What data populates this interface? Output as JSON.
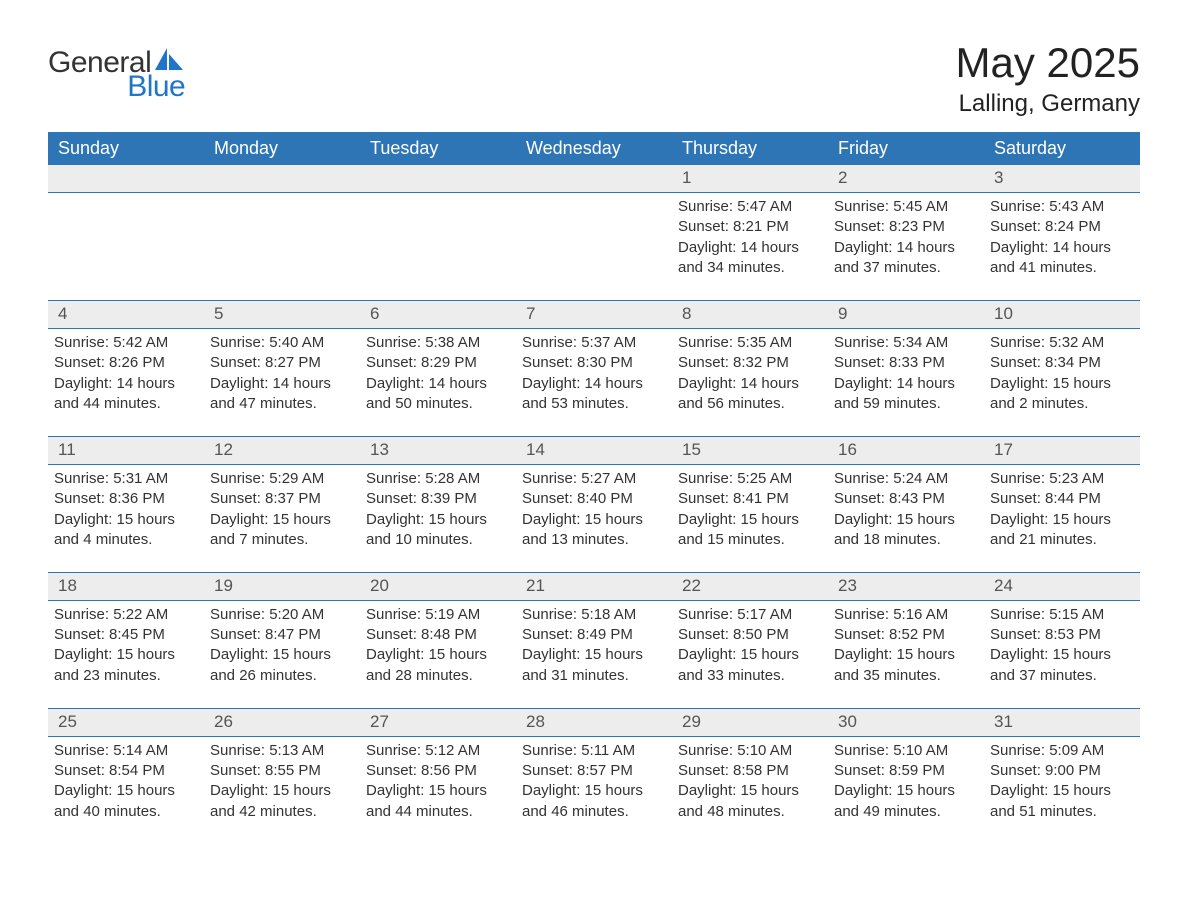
{
  "brand": {
    "text1": "General",
    "text2": "Blue",
    "accent": "#1f75c8"
  },
  "title": "May 2025",
  "location": "Lalling, Germany",
  "colors": {
    "header_bg": "#2e75b6",
    "header_text": "#ffffff",
    "daynum_bg": "#ededed",
    "row_border": "#2e75b6",
    "body_text": "#333333",
    "background": "#ffffff"
  },
  "columns": [
    "Sunday",
    "Monday",
    "Tuesday",
    "Wednesday",
    "Thursday",
    "Friday",
    "Saturday"
  ],
  "weeks": [
    {
      "nums": [
        "",
        "",
        "",
        "",
        "1",
        "2",
        "3"
      ],
      "cells": [
        null,
        null,
        null,
        null,
        {
          "sunrise": "Sunrise: 5:47 AM",
          "sunset": "Sunset: 8:21 PM",
          "day1": "Daylight: 14 hours",
          "day2": "and 34 minutes."
        },
        {
          "sunrise": "Sunrise: 5:45 AM",
          "sunset": "Sunset: 8:23 PM",
          "day1": "Daylight: 14 hours",
          "day2": "and 37 minutes."
        },
        {
          "sunrise": "Sunrise: 5:43 AM",
          "sunset": "Sunset: 8:24 PM",
          "day1": "Daylight: 14 hours",
          "day2": "and 41 minutes."
        }
      ]
    },
    {
      "nums": [
        "4",
        "5",
        "6",
        "7",
        "8",
        "9",
        "10"
      ],
      "cells": [
        {
          "sunrise": "Sunrise: 5:42 AM",
          "sunset": "Sunset: 8:26 PM",
          "day1": "Daylight: 14 hours",
          "day2": "and 44 minutes."
        },
        {
          "sunrise": "Sunrise: 5:40 AM",
          "sunset": "Sunset: 8:27 PM",
          "day1": "Daylight: 14 hours",
          "day2": "and 47 minutes."
        },
        {
          "sunrise": "Sunrise: 5:38 AM",
          "sunset": "Sunset: 8:29 PM",
          "day1": "Daylight: 14 hours",
          "day2": "and 50 minutes."
        },
        {
          "sunrise": "Sunrise: 5:37 AM",
          "sunset": "Sunset: 8:30 PM",
          "day1": "Daylight: 14 hours",
          "day2": "and 53 minutes."
        },
        {
          "sunrise": "Sunrise: 5:35 AM",
          "sunset": "Sunset: 8:32 PM",
          "day1": "Daylight: 14 hours",
          "day2": "and 56 minutes."
        },
        {
          "sunrise": "Sunrise: 5:34 AM",
          "sunset": "Sunset: 8:33 PM",
          "day1": "Daylight: 14 hours",
          "day2": "and 59 minutes."
        },
        {
          "sunrise": "Sunrise: 5:32 AM",
          "sunset": "Sunset: 8:34 PM",
          "day1": "Daylight: 15 hours",
          "day2": "and 2 minutes."
        }
      ]
    },
    {
      "nums": [
        "11",
        "12",
        "13",
        "14",
        "15",
        "16",
        "17"
      ],
      "cells": [
        {
          "sunrise": "Sunrise: 5:31 AM",
          "sunset": "Sunset: 8:36 PM",
          "day1": "Daylight: 15 hours",
          "day2": "and 4 minutes."
        },
        {
          "sunrise": "Sunrise: 5:29 AM",
          "sunset": "Sunset: 8:37 PM",
          "day1": "Daylight: 15 hours",
          "day2": "and 7 minutes."
        },
        {
          "sunrise": "Sunrise: 5:28 AM",
          "sunset": "Sunset: 8:39 PM",
          "day1": "Daylight: 15 hours",
          "day2": "and 10 minutes."
        },
        {
          "sunrise": "Sunrise: 5:27 AM",
          "sunset": "Sunset: 8:40 PM",
          "day1": "Daylight: 15 hours",
          "day2": "and 13 minutes."
        },
        {
          "sunrise": "Sunrise: 5:25 AM",
          "sunset": "Sunset: 8:41 PM",
          "day1": "Daylight: 15 hours",
          "day2": "and 15 minutes."
        },
        {
          "sunrise": "Sunrise: 5:24 AM",
          "sunset": "Sunset: 8:43 PM",
          "day1": "Daylight: 15 hours",
          "day2": "and 18 minutes."
        },
        {
          "sunrise": "Sunrise: 5:23 AM",
          "sunset": "Sunset: 8:44 PM",
          "day1": "Daylight: 15 hours",
          "day2": "and 21 minutes."
        }
      ]
    },
    {
      "nums": [
        "18",
        "19",
        "20",
        "21",
        "22",
        "23",
        "24"
      ],
      "cells": [
        {
          "sunrise": "Sunrise: 5:22 AM",
          "sunset": "Sunset: 8:45 PM",
          "day1": "Daylight: 15 hours",
          "day2": "and 23 minutes."
        },
        {
          "sunrise": "Sunrise: 5:20 AM",
          "sunset": "Sunset: 8:47 PM",
          "day1": "Daylight: 15 hours",
          "day2": "and 26 minutes."
        },
        {
          "sunrise": "Sunrise: 5:19 AM",
          "sunset": "Sunset: 8:48 PM",
          "day1": "Daylight: 15 hours",
          "day2": "and 28 minutes."
        },
        {
          "sunrise": "Sunrise: 5:18 AM",
          "sunset": "Sunset: 8:49 PM",
          "day1": "Daylight: 15 hours",
          "day2": "and 31 minutes."
        },
        {
          "sunrise": "Sunrise: 5:17 AM",
          "sunset": "Sunset: 8:50 PM",
          "day1": "Daylight: 15 hours",
          "day2": "and 33 minutes."
        },
        {
          "sunrise": "Sunrise: 5:16 AM",
          "sunset": "Sunset: 8:52 PM",
          "day1": "Daylight: 15 hours",
          "day2": "and 35 minutes."
        },
        {
          "sunrise": "Sunrise: 5:15 AM",
          "sunset": "Sunset: 8:53 PM",
          "day1": "Daylight: 15 hours",
          "day2": "and 37 minutes."
        }
      ]
    },
    {
      "nums": [
        "25",
        "26",
        "27",
        "28",
        "29",
        "30",
        "31"
      ],
      "cells": [
        {
          "sunrise": "Sunrise: 5:14 AM",
          "sunset": "Sunset: 8:54 PM",
          "day1": "Daylight: 15 hours",
          "day2": "and 40 minutes."
        },
        {
          "sunrise": "Sunrise: 5:13 AM",
          "sunset": "Sunset: 8:55 PM",
          "day1": "Daylight: 15 hours",
          "day2": "and 42 minutes."
        },
        {
          "sunrise": "Sunrise: 5:12 AM",
          "sunset": "Sunset: 8:56 PM",
          "day1": "Daylight: 15 hours",
          "day2": "and 44 minutes."
        },
        {
          "sunrise": "Sunrise: 5:11 AM",
          "sunset": "Sunset: 8:57 PM",
          "day1": "Daylight: 15 hours",
          "day2": "and 46 minutes."
        },
        {
          "sunrise": "Sunrise: 5:10 AM",
          "sunset": "Sunset: 8:58 PM",
          "day1": "Daylight: 15 hours",
          "day2": "and 48 minutes."
        },
        {
          "sunrise": "Sunrise: 5:10 AM",
          "sunset": "Sunset: 8:59 PM",
          "day1": "Daylight: 15 hours",
          "day2": "and 49 minutes."
        },
        {
          "sunrise": "Sunrise: 5:09 AM",
          "sunset": "Sunset: 9:00 PM",
          "day1": "Daylight: 15 hours",
          "day2": "and 51 minutes."
        }
      ]
    }
  ]
}
